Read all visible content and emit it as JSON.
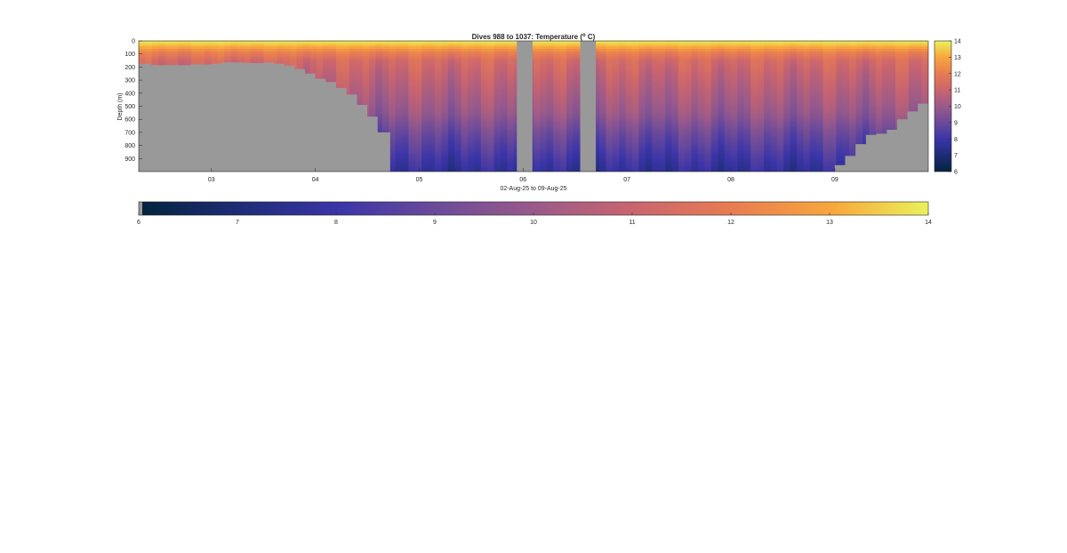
{
  "chart_data": {
    "type": "heatmap",
    "title_main": "Dives 988 to 1037: Temperature (",
    "title_sup": "o",
    "title_end": " C)",
    "xlabel": "02-Aug-25 to 09-Aug-25",
    "ylabel": "Depth (m)",
    "xlim": [
      2.3,
      9.9
    ],
    "ylim": [
      0,
      1000
    ],
    "y_ticks": [
      0,
      100,
      200,
      300,
      400,
      500,
      600,
      700,
      800,
      900
    ],
    "y_tick_labels": [
      "0",
      "100",
      "200",
      "300",
      "400",
      "500",
      "600",
      "700",
      "800",
      "900"
    ],
    "x_ticks": [
      3,
      4,
      5,
      6,
      7,
      8,
      9
    ],
    "x_tick_labels": [
      "03",
      "04",
      "05",
      "06",
      "07",
      "08",
      "09"
    ],
    "colorbar_ticks": [
      6,
      7,
      8,
      9,
      10,
      11,
      12,
      13,
      14
    ],
    "colorbar_tick_labels": [
      "6",
      "7",
      "8",
      "9",
      "10",
      "11",
      "12",
      "13",
      "14"
    ],
    "clim": [
      6,
      14
    ],
    "colormap": "thermal",
    "no_data_color": "#999999",
    "surface_color": "#f2f25a",
    "gaps": [
      [
        5.94,
        6.09
      ],
      [
        6.55,
        6.7
      ]
    ],
    "seafloor_profile": {
      "x": [
        2.3,
        2.42,
        2.6,
        2.8,
        3.0,
        3.1,
        3.2,
        3.3,
        3.4,
        3.5,
        3.6,
        3.7,
        3.8,
        3.9,
        4.0,
        4.1,
        4.2,
        4.3,
        4.4,
        4.5,
        4.6,
        4.72,
        8.94,
        9.0,
        9.1,
        9.2,
        9.3,
        9.4,
        9.5,
        9.6,
        9.7,
        9.8,
        9.9
      ],
      "depth": [
        175,
        185,
        185,
        180,
        175,
        165,
        165,
        168,
        170,
        165,
        175,
        190,
        215,
        250,
        290,
        315,
        360,
        410,
        490,
        580,
        700,
        1000,
        1000,
        950,
        880,
        790,
        720,
        710,
        680,
        600,
        540,
        480,
        480
      ]
    },
    "profile": {
      "depth": [
        0,
        40,
        80,
        150,
        250,
        400,
        550,
        700,
        850,
        1000
      ],
      "temperature": [
        13.9,
        13.2,
        12.2,
        11.3,
        10.9,
        10.4,
        9.9,
        9.0,
        8.3,
        7.6
      ]
    }
  }
}
